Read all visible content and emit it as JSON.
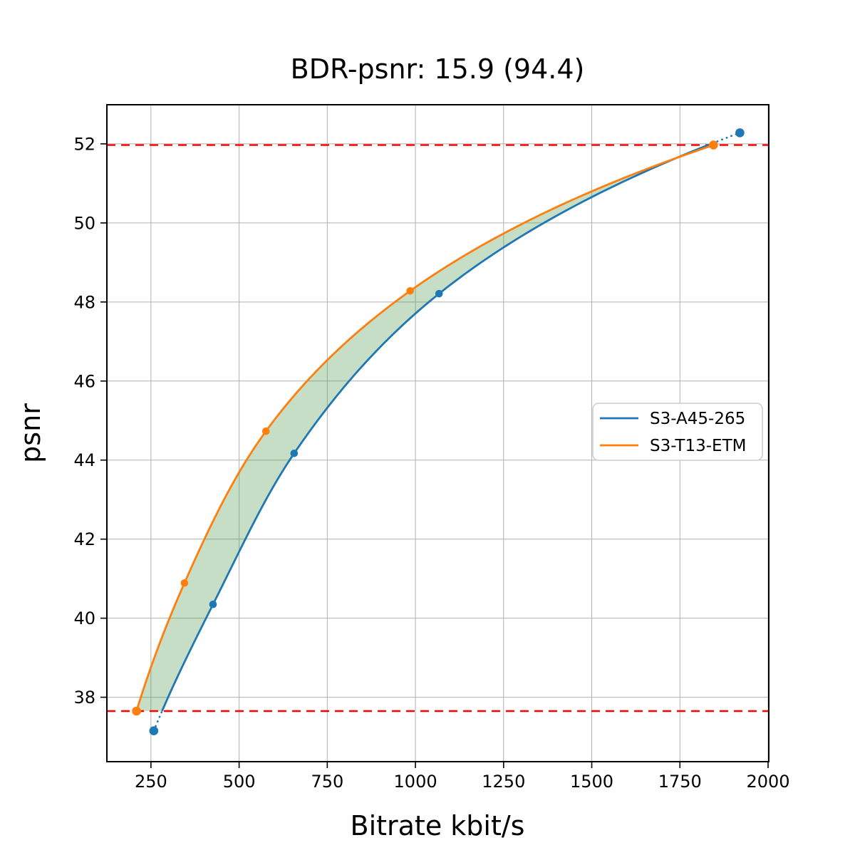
{
  "title": "BDR-psnr: 15.9 (94.4)",
  "chart_data": {
    "type": "line",
    "title": "BDR-psnr: 15.9 (94.4)",
    "xlabel": "Bitrate kbit/s",
    "ylabel": "psnr",
    "xlim": [
      125,
      2002
    ],
    "ylim": [
      36.37,
      52.99
    ],
    "xticks": [
      250,
      500,
      750,
      1000,
      1250,
      1500,
      1750,
      2000
    ],
    "yticks": [
      38,
      40,
      42,
      44,
      46,
      48,
      50,
      52
    ],
    "grid": true,
    "legend_position": "center right",
    "ref_lines_y": [
      37.65,
      51.97
    ],
    "series": [
      {
        "name": "S3-A45-265",
        "color": "#1f77b4",
        "x": [
          258,
          426,
          656,
          1067,
          1920
        ],
        "y": [
          37.15,
          40.35,
          44.17,
          48.21,
          52.28
        ]
      },
      {
        "name": "S3-T13-ETM",
        "color": "#ff7f0e",
        "x": [
          209,
          345,
          576,
          985,
          1845
        ],
        "y": [
          37.65,
          40.89,
          44.73,
          48.28,
          51.97
        ]
      }
    ],
    "fill_between": {
      "color": "#5aa05a",
      "opacity": 0.35,
      "note": "shaded area between the two rate-distortion curves within ref_lines_y range"
    },
    "ref_line_color": "#ff0000",
    "grid_color": "#b0b0b0"
  }
}
